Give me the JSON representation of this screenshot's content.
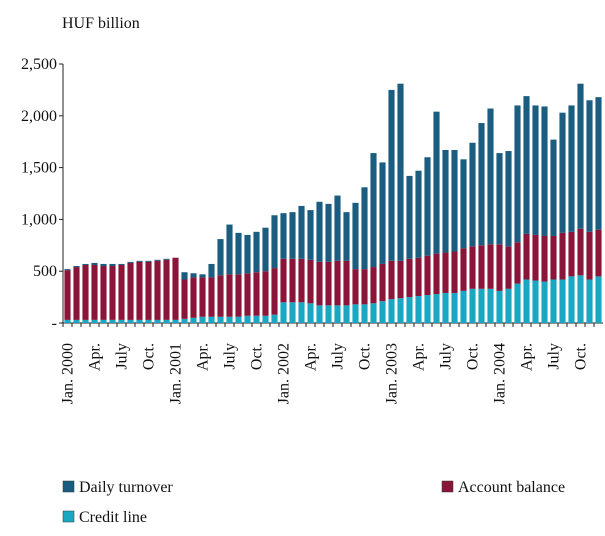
{
  "chart_data": {
    "type": "stacked_bar",
    "y_axis_label": "HUF billion",
    "categories": [
      "Jan. 2000",
      null,
      null,
      "Apr.",
      null,
      null,
      "July",
      null,
      null,
      "Oct.",
      null,
      null,
      "Jan. 2001",
      null,
      null,
      "Apr.",
      null,
      null,
      "July",
      null,
      null,
      "Oct.",
      null,
      null,
      "Jan. 2002",
      null,
      null,
      "Apr.",
      null,
      null,
      "July",
      null,
      null,
      "Oct.",
      null,
      null,
      "Jan. 2003",
      null,
      null,
      "Apr.",
      null,
      null,
      "July",
      null,
      null,
      "Oct.",
      null,
      null,
      "Jan. 2004",
      null,
      null,
      "Apr.",
      null,
      null,
      "July",
      null,
      null,
      "Oct.",
      null,
      null
    ],
    "series": [
      {
        "name": "Credit line",
        "color": "#1aa7c4",
        "values": [
          30,
          30,
          30,
          30,
          30,
          30,
          30,
          30,
          30,
          30,
          30,
          30,
          30,
          40,
          50,
          60,
          60,
          60,
          60,
          60,
          70,
          70,
          70,
          80,
          200,
          200,
          200,
          190,
          170,
          170,
          170,
          170,
          180,
          180,
          190,
          210,
          230,
          240,
          250,
          260,
          270,
          280,
          290,
          290,
          310,
          330,
          330,
          330,
          310,
          330,
          380,
          420,
          410,
          400,
          420,
          420,
          450,
          460,
          420,
          450
        ]
      },
      {
        "name": "Account balance",
        "color": "#8a1538",
        "values": [
          480,
          510,
          530,
          530,
          520,
          520,
          530,
          550,
          560,
          560,
          570,
          580,
          600,
          380,
          390,
          380,
          380,
          400,
          410,
          410,
          410,
          420,
          430,
          450,
          420,
          420,
          420,
          420,
          420,
          420,
          430,
          430,
          340,
          340,
          350,
          360,
          370,
          360,
          370,
          370,
          380,
          390,
          390,
          400,
          410,
          410,
          420,
          430,
          450,
          410,
          400,
          440,
          440,
          440,
          420,
          450,
          430,
          450,
          460,
          450
        ]
      },
      {
        "name": "Daily turnover",
        "color": "#1b5d80",
        "values": [
          10,
          10,
          10,
          20,
          20,
          20,
          10,
          10,
          10,
          10,
          10,
          10,
          0,
          70,
          40,
          30,
          130,
          350,
          480,
          400,
          370,
          390,
          420,
          510,
          440,
          450,
          510,
          480,
          580,
          560,
          630,
          470,
          640,
          790,
          1100,
          980,
          1650,
          1710,
          800,
          840,
          950,
          1370,
          990,
          980,
          860,
          1000,
          1180,
          1310,
          880,
          920,
          1320,
          1330,
          1250,
          1250,
          930,
          1160,
          1220,
          1400,
          1270,
          1280
        ]
      }
    ],
    "ylim": [
      0,
      2500
    ],
    "yticks": [
      {
        "value": 0,
        "label": "-"
      },
      500,
      {
        "value": 1000,
        "label": "1,000"
      },
      {
        "value": 1500,
        "label": "1,500"
      },
      {
        "value": 2000,
        "label": "2,000"
      },
      {
        "value": 2500,
        "label": "2,500"
      }
    ]
  }
}
